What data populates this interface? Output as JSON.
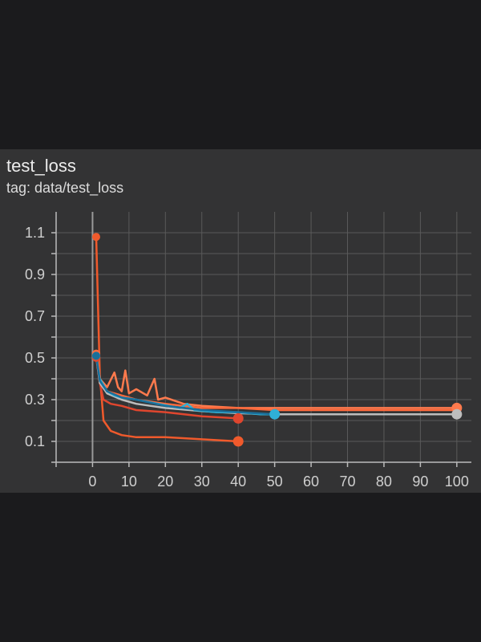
{
  "card": {
    "title": "test_loss",
    "tag": "tag: data/test_loss"
  },
  "chart_data": {
    "type": "line",
    "xlim": [
      -10,
      104
    ],
    "ylim": [
      0.0,
      1.2
    ],
    "xticks": [
      0,
      10,
      20,
      30,
      40,
      50,
      60,
      70,
      80,
      90,
      100
    ],
    "yticks": [
      0.1,
      0.3,
      0.5,
      0.7,
      0.9,
      1.1
    ],
    "grid": true,
    "legend": "none",
    "series": [
      {
        "color": "#f05a2c",
        "end_marker": "circle",
        "x": [
          1,
          2,
          3,
          5,
          8,
          12,
          20,
          30,
          40
        ],
        "y": [
          1.08,
          0.42,
          0.2,
          0.15,
          0.13,
          0.12,
          0.12,
          0.11,
          0.1
        ]
      },
      {
        "color": "#e0462e",
        "end_marker": "circle",
        "x": [
          1,
          2,
          3,
          5,
          8,
          12,
          20,
          30,
          40
        ],
        "y": [
          0.5,
          0.38,
          0.3,
          0.28,
          0.27,
          0.25,
          0.24,
          0.22,
          0.21
        ]
      },
      {
        "color": "#ff7a4d",
        "end_marker": "circle",
        "x": [
          1,
          2,
          4,
          6,
          7,
          8,
          9,
          10,
          12,
          15,
          17,
          18,
          20,
          25,
          30,
          40,
          50,
          60,
          70,
          80,
          90,
          100
        ],
        "y": [
          0.52,
          0.4,
          0.36,
          0.43,
          0.36,
          0.34,
          0.44,
          0.33,
          0.35,
          0.32,
          0.4,
          0.3,
          0.31,
          0.28,
          0.27,
          0.26,
          0.26,
          0.26,
          0.26,
          0.26,
          0.26,
          0.26
        ]
      },
      {
        "color": "#ff6a3c",
        "end_marker": "none",
        "x": [
          1,
          2,
          4,
          8,
          12,
          20,
          30,
          40,
          50,
          60,
          70,
          80,
          90,
          100
        ],
        "y": [
          0.52,
          0.38,
          0.34,
          0.32,
          0.3,
          0.28,
          0.26,
          0.26,
          0.25,
          0.25,
          0.25,
          0.25,
          0.25,
          0.25
        ]
      },
      {
        "color": "#bdbdbd",
        "end_marker": "circle",
        "x": [
          1,
          2,
          4,
          8,
          12,
          20,
          30,
          40,
          50,
          60,
          70,
          80,
          90,
          100
        ],
        "y": [
          0.51,
          0.38,
          0.33,
          0.3,
          0.28,
          0.26,
          0.245,
          0.235,
          0.23,
          0.23,
          0.23,
          0.23,
          0.23,
          0.23
        ]
      },
      {
        "color": "#2fb0d6",
        "end_marker": "circle",
        "x": [
          1,
          2,
          4,
          6,
          8,
          12,
          18,
          24,
          26,
          28,
          34,
          40,
          46,
          50
        ],
        "y": [
          0.51,
          0.4,
          0.34,
          0.32,
          0.31,
          0.3,
          0.28,
          0.26,
          0.28,
          0.25,
          0.24,
          0.24,
          0.23,
          0.23
        ]
      },
      {
        "color": "#1a6f9a",
        "end_marker": "none",
        "x": [
          1,
          2,
          4,
          8,
          12,
          20,
          30,
          40,
          50
        ],
        "y": [
          0.51,
          0.39,
          0.34,
          0.31,
          0.3,
          0.27,
          0.25,
          0.24,
          0.23
        ]
      }
    ]
  }
}
